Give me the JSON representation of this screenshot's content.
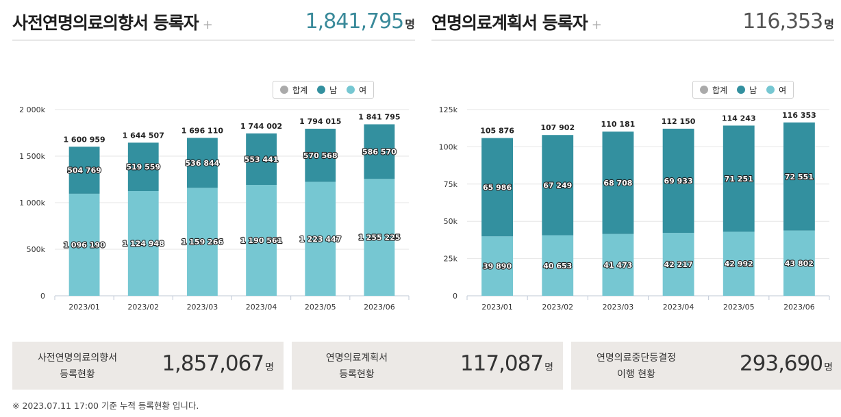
{
  "panels": [
    {
      "title": "사전연명의료의향서 등록자",
      "plus": "+",
      "total": "1,841,795",
      "total_unit": "명",
      "total_color": "#3a8a9a"
    },
    {
      "title": "연명의료계획서 등록자",
      "plus": "+",
      "total": "116,353",
      "total_unit": "명",
      "total_color": "#555555"
    }
  ],
  "legend": {
    "items": [
      {
        "label": "합계",
        "color": "#aaaaaa"
      },
      {
        "label": "남",
        "color": "#33909f"
      },
      {
        "label": "여",
        "color": "#76c7d2"
      }
    ]
  },
  "chart_data": [
    {
      "type": "bar",
      "stacked": true,
      "categories": [
        "2023/01",
        "2023/02",
        "2023/03",
        "2023/04",
        "2023/05",
        "2023/06"
      ],
      "series": [
        {
          "name": "여",
          "values": [
            1096190,
            1124948,
            1159266,
            1190561,
            1223447,
            1255225
          ],
          "labels": [
            "1 096 190",
            "1 124 948",
            "1 159 266",
            "1 190 561",
            "1 223 447",
            "1 255 225"
          ]
        },
        {
          "name": "남",
          "values": [
            504769,
            519559,
            536844,
            553441,
            570568,
            586570
          ],
          "labels": [
            "504 769",
            "519 559",
            "536 844",
            "553 441",
            "570 568",
            "586 570"
          ]
        }
      ],
      "totals": [
        1600959,
        1644507,
        1696110,
        1744002,
        1794015,
        1841795
      ],
      "total_labels": [
        "1 600 959",
        "1 644 507",
        "1 696 110",
        "1 744 002",
        "1 794 015",
        "1 841 795"
      ],
      "ylim": [
        0,
        2000000
      ],
      "yticks": [
        0,
        500000,
        1000000,
        1500000,
        2000000
      ],
      "ytick_labels": [
        "0",
        "500k",
        "1 000k",
        "1 500k",
        "2 000k"
      ],
      "legend_position": "top-right",
      "grid": true
    },
    {
      "type": "bar",
      "stacked": true,
      "categories": [
        "2023/01",
        "2023/02",
        "2023/03",
        "2023/04",
        "2023/05",
        "2023/06"
      ],
      "series": [
        {
          "name": "여",
          "values": [
            39890,
            40653,
            41473,
            42217,
            42992,
            43802
          ],
          "labels": [
            "39 890",
            "40 653",
            "41 473",
            "42 217",
            "42 992",
            "43 802"
          ]
        },
        {
          "name": "남",
          "values": [
            65986,
            67249,
            68708,
            69933,
            71251,
            72551
          ],
          "labels": [
            "65 986",
            "67 249",
            "68 708",
            "69 933",
            "71 251",
            "72 551"
          ]
        }
      ],
      "totals": [
        105876,
        107902,
        110181,
        112150,
        114243,
        116353
      ],
      "total_labels": [
        "105 876",
        "107 902",
        "110 181",
        "112 150",
        "114 243",
        "116 353"
      ],
      "ylim": [
        0,
        125000
      ],
      "yticks": [
        0,
        25000,
        50000,
        75000,
        100000,
        125000
      ],
      "ytick_labels": [
        "0",
        "25k",
        "50k",
        "75k",
        "100k",
        "125k"
      ],
      "legend_position": "top-right",
      "grid": true
    }
  ],
  "stats": [
    {
      "label_line1": "사전연명의료의향서",
      "label_line2": "등록현황",
      "value": "1,857,067",
      "unit": "명"
    },
    {
      "label_line1": "연명의료계획서",
      "label_line2": "등록현황",
      "value": "117,087",
      "unit": "명"
    },
    {
      "label_line1": "연명의료중단등결정",
      "label_line2": "이행 현황",
      "value": "293,690",
      "unit": "명"
    }
  ],
  "footnote": "※ 2023.07.11 17:00 기준 누적 등록현황 입니다."
}
